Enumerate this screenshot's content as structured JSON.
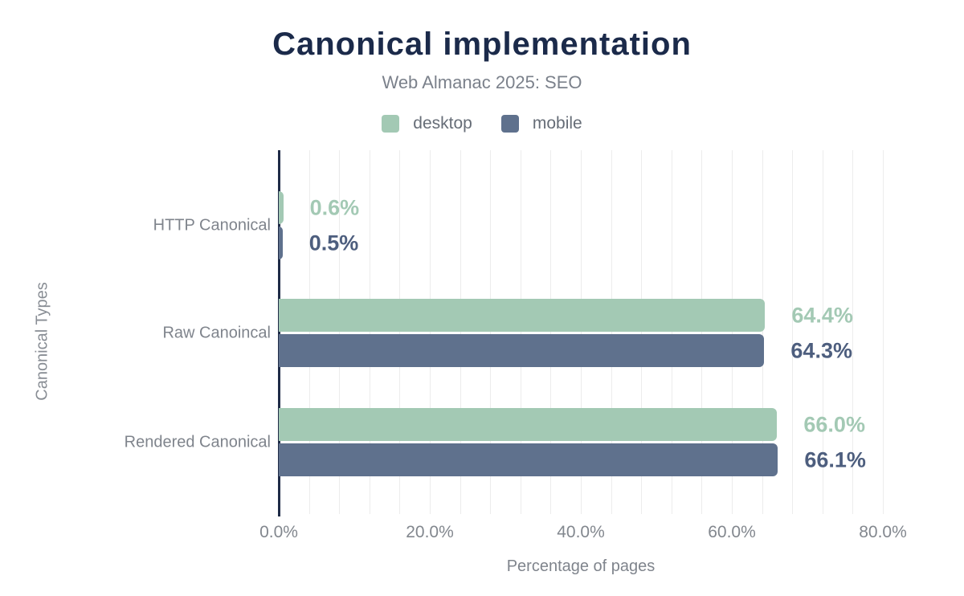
{
  "header": {
    "title": "Canonical implementation",
    "subtitle": "Web Almanac 2025: SEO"
  },
  "chart_data": {
    "type": "bar",
    "orientation": "horizontal",
    "title": "Canonical implementation",
    "subtitle": "Web Almanac 2025: SEO",
    "categories": [
      "HTTP Canonical",
      "Raw Canoincal",
      "Rendered Canonical"
    ],
    "series": [
      {
        "name": "desktop",
        "color": "#a3c9b4",
        "label_color": "#a3c9b4",
        "values": [
          0.6,
          64.4,
          66.0
        ]
      },
      {
        "name": "mobile",
        "color": "#5f718d",
        "label_color": "#4d5e7e",
        "values": [
          0.5,
          64.3,
          66.1
        ]
      }
    ],
    "xlabel": "Percentage of pages",
    "ylabel": "Canonical Types",
    "xlim": [
      0,
      80
    ],
    "x_ticks": [
      "0.0%",
      "20.0%",
      "40.0%",
      "60.0%",
      "80.0%"
    ],
    "x_tick_values": [
      0,
      20,
      40,
      60,
      80
    ],
    "minor_grid_step": 4,
    "grid": true,
    "legend_position": "top",
    "colors": {
      "axis_line": "#1f2b47",
      "gridline": "#ececec",
      "title_text": "#1b2a4a",
      "muted_text": "#7f848c"
    }
  }
}
